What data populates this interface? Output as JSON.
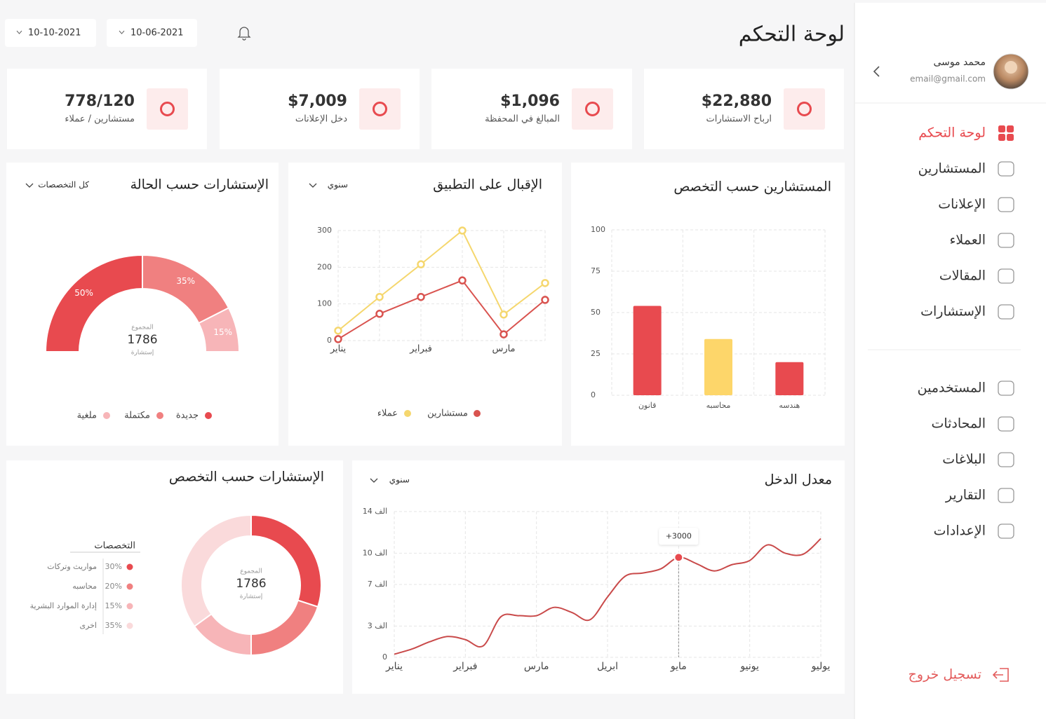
{
  "sidebar": {
    "user": {
      "name": "محمد موسى",
      "email": "email@gmail.com"
    },
    "menu": [
      "لوحة التحكم",
      "المستشارين",
      "الإعلانات",
      "العملاء",
      "المقالات",
      "الإستشارات"
    ],
    "menu2": [
      "المستخدمين",
      "المحادثات",
      "البلاغات",
      "التقارير",
      "الإعدادات"
    ],
    "logout": "تسجيل خروج"
  },
  "header": {
    "title": "لوحة التحكم",
    "dates": [
      "10-06-2021",
      "10-10-2021"
    ]
  },
  "stats": [
    {
      "value": "$22,880",
      "label": "ارباح الاستشارات"
    },
    {
      "value": "$1,096",
      "label": "المبالغ في المحفظة"
    },
    {
      "value": "$7,009",
      "label": "دخل الإعلانات"
    },
    {
      "value": "778/120",
      "label": "مستشارين / عملاء"
    }
  ],
  "chart_data": [
    {
      "type": "bar",
      "title": "المستشارين حسب التخصص",
      "categories": [
        "قانون",
        "محاسبه",
        "هندسه"
      ],
      "values": [
        54,
        34,
        20
      ],
      "colors": [
        "#e84a4f",
        "#fdd66a",
        "#e84a4f"
      ],
      "ylim": [
        0,
        100
      ],
      "yticks": [
        0,
        25,
        50,
        75,
        100
      ],
      "grid": true
    },
    {
      "type": "line",
      "title": "الإقبال على التطبيق",
      "filter": "سنوي",
      "categories": [
        "يناير",
        null,
        "فبراير",
        null,
        "مارس",
        null
      ],
      "series": [
        {
          "name": "مستشارين",
          "color": "#d9534f",
          "values": [
            4,
            73,
            119,
            164,
            17,
            111
          ]
        },
        {
          "name": "عملاء",
          "color": "#f5d76e",
          "values": [
            27,
            119,
            208,
            300,
            71,
            157
          ]
        }
      ],
      "ylim": [
        0,
        300
      ],
      "yticks": [
        0,
        100,
        200,
        300
      ],
      "grid": true,
      "markers": true
    },
    {
      "type": "pie",
      "half": true,
      "title": "الإستشارات حسب الحالة",
      "filter": "كل التخصصات",
      "center": {
        "label": "المجموع",
        "total": 1786,
        "unit": "إستشارة"
      },
      "categories": [
        "جديدة",
        "مكتملة",
        "ملغية"
      ],
      "values": [
        50,
        35,
        15
      ],
      "value_labels": [
        "50%",
        "35%",
        "15%"
      ],
      "colors": [
        "#e84a4f",
        "#f08080",
        "#f7b5b8"
      ]
    },
    {
      "type": "pie",
      "half": false,
      "title": "الإستشارات حسب التخصص",
      "legend_title": "التخصصات",
      "center": {
        "label": "المجموع",
        "total": 1786,
        "unit": "إستشارة"
      },
      "categories": [
        "مواريث وتركات",
        "محاسبه",
        "إدارة الموارد البشرية",
        "اخرى"
      ],
      "values": [
        30,
        20,
        15,
        35
      ],
      "value_labels": [
        "30%",
        "20%",
        "15%",
        "35%"
      ],
      "colors": [
        "#e84a4f",
        "#f08080",
        "#f7b5b8",
        "#fadadb"
      ]
    },
    {
      "type": "line",
      "title": "معدل الدخل",
      "filter": "سنوي",
      "smooth": true,
      "x": [
        0,
        0.25,
        0.5,
        0.75,
        1,
        1.25,
        1.5,
        1.75,
        2,
        2.25,
        2.5,
        2.75,
        3,
        3.25,
        3.5,
        3.75,
        4,
        4.25,
        4.5,
        4.75,
        5,
        5.25,
        5.5,
        5.75,
        6
      ],
      "series": [
        {
          "color": "#c94a4a",
          "values": [
            300,
            800,
            1500,
            2000,
            1700,
            1100,
            3900,
            4000,
            4000,
            4800,
            4300,
            3600,
            5800,
            7800,
            8100,
            8500,
            9600,
            9000,
            8300,
            8900,
            9300,
            10800,
            10000,
            9900,
            11400
          ]
        }
      ],
      "xlim": [
        0,
        6
      ],
      "xticks": [
        {
          "value": 0,
          "label": "يناير"
        },
        {
          "value": 1,
          "label": "فبراير"
        },
        {
          "value": 2,
          "label": "مارس"
        },
        {
          "value": 3,
          "label": "ابريل"
        },
        {
          "value": 4,
          "label": "مايو"
        },
        {
          "value": 5,
          "label": "يونيو"
        },
        {
          "value": 6,
          "label": "يوليو"
        }
      ],
      "ylim": [
        0,
        14000
      ],
      "yticks": [
        0,
        {
          "value": 3000,
          "label": "3 الف"
        },
        {
          "value": 7000,
          "label": "7 الف"
        },
        {
          "value": 10000,
          "label": "10 الف"
        },
        {
          "value": 14000,
          "label": "14 الف"
        }
      ],
      "grid": true,
      "annotations": [
        {
          "x": 4,
          "text": "+3000"
        }
      ]
    }
  ]
}
